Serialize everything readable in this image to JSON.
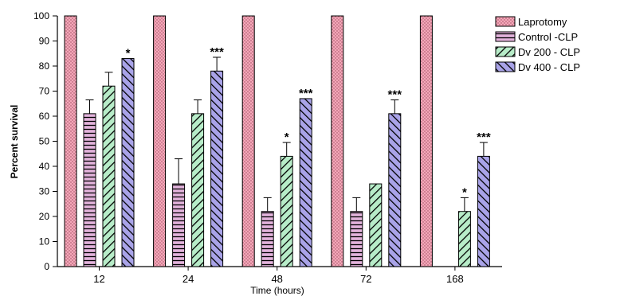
{
  "chart_data": {
    "type": "bar",
    "categories": [
      "12",
      "24",
      "48",
      "72",
      "168"
    ],
    "xlabel": "Time (hours)",
    "ylabel": "Percent survival",
    "ylim": [
      0,
      100
    ],
    "yticks": [
      0,
      10,
      20,
      30,
      40,
      50,
      60,
      70,
      80,
      90,
      100
    ],
    "grid": false,
    "legend_position": "top-right",
    "series": [
      {
        "name": "Laprotomy",
        "pattern": "dots",
        "color": "#f4a6b8",
        "values": [
          100,
          100,
          100,
          100,
          100
        ],
        "errors": [
          0,
          0,
          0,
          0,
          0
        ],
        "annotations": [
          "",
          "",
          "",
          "",
          ""
        ]
      },
      {
        "name": "Control -CLP",
        "pattern": "horizontal",
        "color": "#e3b3dc",
        "values": [
          61,
          33,
          22,
          22,
          0
        ],
        "errors": [
          5.5,
          10,
          5.5,
          5.5,
          0
        ],
        "annotations": [
          "",
          "",
          "",
          "",
          ""
        ]
      },
      {
        "name": "Dv 200 - CLP",
        "pattern": "diagonal",
        "color": "#b7ecc8",
        "values": [
          72,
          61,
          44,
          33,
          22
        ],
        "errors": [
          5.5,
          5.5,
          5.5,
          0,
          5.5
        ],
        "annotations": [
          "",
          "",
          "*",
          "",
          "*"
        ]
      },
      {
        "name": "Dv 400 - CLP",
        "pattern": "diagonal",
        "color": "#a9a3e8",
        "values": [
          83,
          78,
          67,
          61,
          44
        ],
        "errors": [
          0,
          5.5,
          0,
          5.5,
          5.5
        ],
        "annotations": [
          "*",
          "***",
          "***",
          "***",
          "***"
        ]
      }
    ]
  }
}
